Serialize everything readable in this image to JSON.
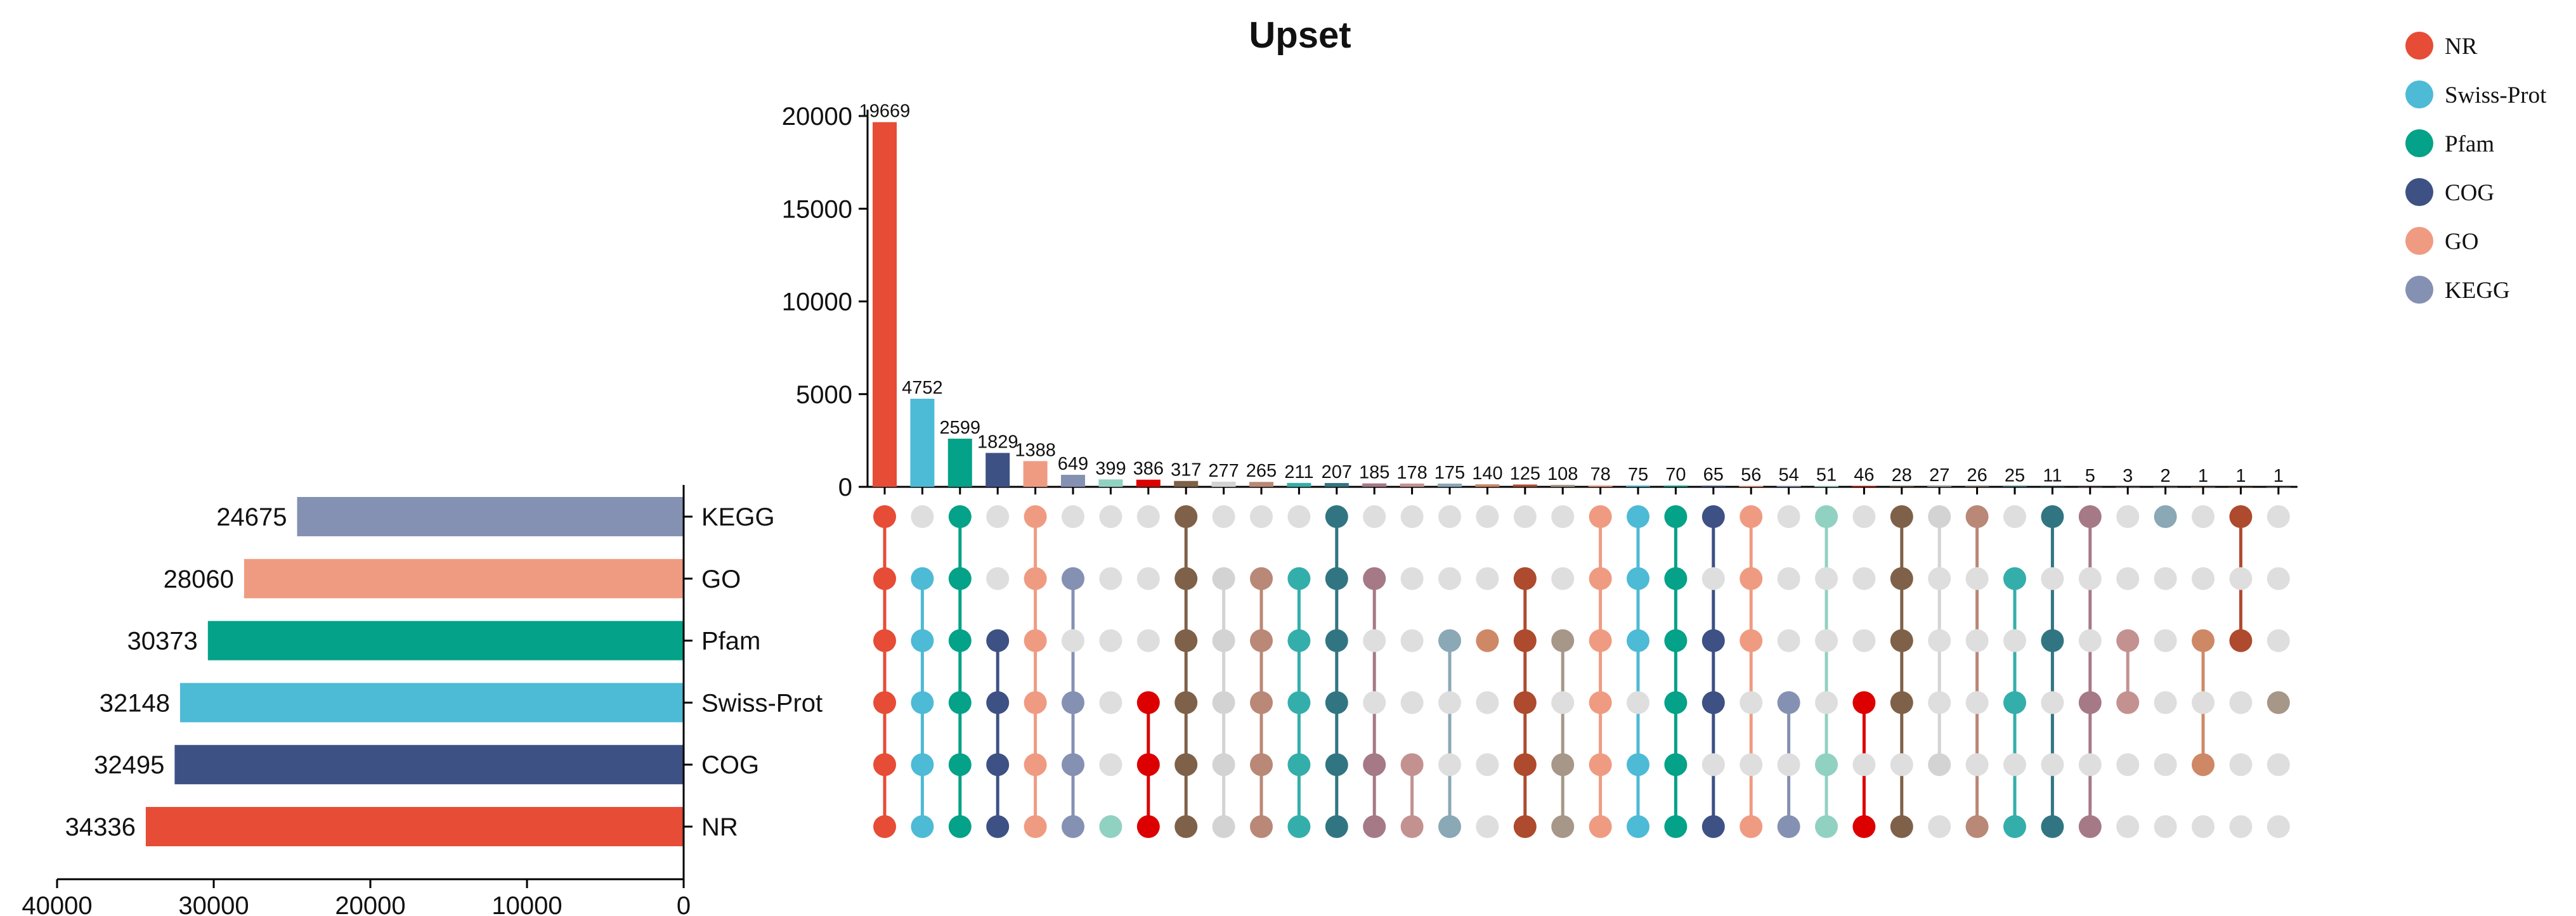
{
  "chart_data": {
    "type": "upset",
    "title": "Upset",
    "sets": [
      "KEGG",
      "GO",
      "Pfam",
      "Swiss-Prot",
      "COG",
      "NR"
    ],
    "set_sizes": [
      24675,
      28060,
      30373,
      32148,
      32495,
      34336
    ],
    "set_colors": [
      "#8591b3",
      "#ef9b82",
      "#04a288",
      "#4dbad6",
      "#3d5184",
      "#e64c36"
    ],
    "set_size_axis": {
      "lim": [
        40000,
        0
      ],
      "ticks": [
        40000,
        30000,
        20000,
        10000,
        0
      ]
    },
    "intersection_axis": {
      "lim": [
        0,
        20000
      ],
      "ticks": [
        0,
        5000,
        10000,
        15000,
        20000
      ]
    },
    "legend": {
      "position": "top-right",
      "items": [
        {
          "label": "NR",
          "color": "#e64c36"
        },
        {
          "label": "Swiss-Prot",
          "color": "#4dbad6"
        },
        {
          "label": "Pfam",
          "color": "#04a288"
        },
        {
          "label": "COG",
          "color": "#3d5184"
        },
        {
          "label": "GO",
          "color": "#ef9b82"
        },
        {
          "label": "KEGG",
          "color": "#8591b3"
        }
      ]
    },
    "intersections": [
      {
        "value": 19669,
        "color": "#e64c36",
        "sets": [
          "KEGG",
          "GO",
          "Pfam",
          "Swiss-Prot",
          "COG",
          "NR"
        ]
      },
      {
        "value": 4752,
        "color": "#4dbad6",
        "sets": [
          "GO",
          "Pfam",
          "Swiss-Prot",
          "COG",
          "NR"
        ]
      },
      {
        "value": 2599,
        "color": "#04a288",
        "sets": [
          "KEGG",
          "GO",
          "Pfam",
          "Swiss-Prot",
          "COG",
          "NR"
        ]
      },
      {
        "value": 1829,
        "color": "#3d5184",
        "sets": [
          "Pfam",
          "Swiss-Prot",
          "COG",
          "NR"
        ]
      },
      {
        "value": 1388,
        "color": "#ef9b82",
        "sets": [
          "KEGG",
          "GO",
          "Pfam",
          "Swiss-Prot",
          "COG",
          "NR"
        ]
      },
      {
        "value": 649,
        "color": "#8591b3",
        "sets": [
          "GO",
          "Swiss-Prot",
          "COG",
          "NR"
        ]
      },
      {
        "value": 399,
        "color": "#91d1c2",
        "sets": [
          "NR"
        ]
      },
      {
        "value": 386,
        "color": "#dc0000",
        "sets": [
          "Swiss-Prot",
          "COG",
          "NR"
        ]
      },
      {
        "value": 317,
        "color": "#7e6148",
        "sets": [
          "KEGG",
          "GO",
          "Pfam",
          "Swiss-Prot",
          "COG",
          "NR"
        ]
      },
      {
        "value": 277,
        "color": "#d3d3d3",
        "sets": [
          "GO",
          "Pfam",
          "Swiss-Prot",
          "COG",
          "NR"
        ]
      },
      {
        "value": 265,
        "color": "#b98876",
        "sets": [
          "GO",
          "Pfam",
          "Swiss-Prot",
          "COG",
          "NR"
        ]
      },
      {
        "value": 211,
        "color": "#34aeaa",
        "sets": [
          "GO",
          "Pfam",
          "Swiss-Prot",
          "COG",
          "NR"
        ]
      },
      {
        "value": 207,
        "color": "#327582",
        "sets": [
          "KEGG",
          "GO",
          "Pfam",
          "Swiss-Prot",
          "COG",
          "NR"
        ]
      },
      {
        "value": 185,
        "color": "#a67986",
        "sets": [
          "GO",
          "COG",
          "NR"
        ]
      },
      {
        "value": 178,
        "color": "#c49191",
        "sets": [
          "COG",
          "NR"
        ]
      },
      {
        "value": 175,
        "color": "#8aa8b5",
        "sets": [
          "Pfam",
          "NR"
        ]
      },
      {
        "value": 140,
        "color": "#cf8866",
        "sets": [
          "Pfam"
        ]
      },
      {
        "value": 125,
        "color": "#ae4a2d",
        "sets": [
          "GO",
          "Pfam",
          "Swiss-Prot",
          "COG",
          "NR"
        ]
      },
      {
        "value": 108,
        "color": "#a69789",
        "sets": [
          "Pfam",
          "COG",
          "NR"
        ]
      },
      {
        "value": 78,
        "color": "#ef9b82",
        "sets": [
          "KEGG",
          "GO",
          "Pfam",
          "Swiss-Prot",
          "COG",
          "NR"
        ]
      },
      {
        "value": 75,
        "color": "#4dbad6",
        "sets": [
          "KEGG",
          "GO",
          "Pfam",
          "COG",
          "NR"
        ]
      },
      {
        "value": 70,
        "color": "#04a288",
        "sets": [
          "KEGG",
          "GO",
          "Pfam",
          "Swiss-Prot",
          "COG",
          "NR"
        ]
      },
      {
        "value": 65,
        "color": "#3d5184",
        "sets": [
          "KEGG",
          "Pfam",
          "Swiss-Prot",
          "NR"
        ]
      },
      {
        "value": 56,
        "color": "#ef9b82",
        "sets": [
          "KEGG",
          "GO",
          "Pfam",
          "NR"
        ]
      },
      {
        "value": 54,
        "color": "#8591b3",
        "sets": [
          "Swiss-Prot",
          "NR"
        ]
      },
      {
        "value": 51,
        "color": "#91d1c2",
        "sets": [
          "KEGG",
          "COG",
          "NR"
        ]
      },
      {
        "value": 46,
        "color": "#dc0000",
        "sets": [
          "Swiss-Prot",
          "NR"
        ]
      },
      {
        "value": 28,
        "color": "#7e6148",
        "sets": [
          "KEGG",
          "GO",
          "Pfam",
          "Swiss-Prot",
          "NR"
        ]
      },
      {
        "value": 27,
        "color": "#d3d3d3",
        "sets": [
          "KEGG",
          "COG"
        ]
      },
      {
        "value": 26,
        "color": "#b98876",
        "sets": [
          "KEGG",
          "NR"
        ]
      },
      {
        "value": 25,
        "color": "#34aeaa",
        "sets": [
          "GO",
          "Swiss-Prot",
          "NR"
        ]
      },
      {
        "value": 11,
        "color": "#327582",
        "sets": [
          "KEGG",
          "Pfam",
          "NR"
        ]
      },
      {
        "value": 5,
        "color": "#a67986",
        "sets": [
          "KEGG",
          "Swiss-Prot",
          "NR"
        ]
      },
      {
        "value": 3,
        "color": "#c49191",
        "sets": [
          "Pfam",
          "Swiss-Prot"
        ]
      },
      {
        "value": 2,
        "color": "#8aa8b5",
        "sets": [
          "KEGG"
        ]
      },
      {
        "value": 1,
        "color": "#cf8866",
        "sets": [
          "Pfam",
          "COG"
        ]
      },
      {
        "value": 1,
        "color": "#ae4a2d",
        "sets": [
          "KEGG",
          "Pfam"
        ]
      },
      {
        "value": 1,
        "color": "#a69789",
        "sets": [
          "Swiss-Prot"
        ]
      }
    ]
  }
}
